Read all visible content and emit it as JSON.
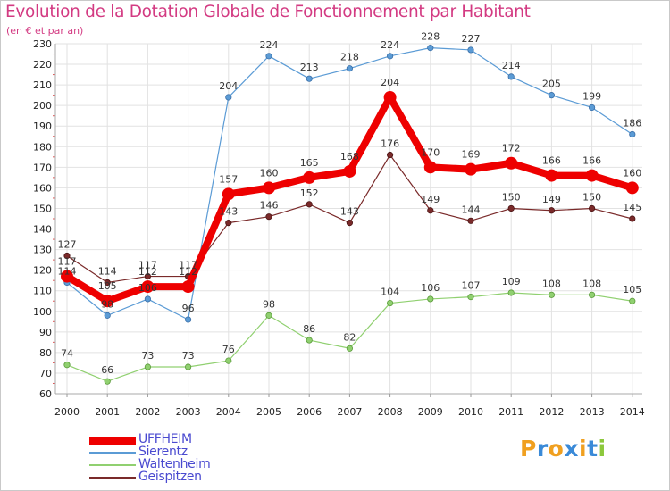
{
  "chart_data": {
    "type": "line",
    "title": "Evolution de la Dotation Globale de Fonctionnement par Habitant",
    "subtitle": "(en € et par an)",
    "x": [
      "2000",
      "2001",
      "2002",
      "2003",
      "2004",
      "2005",
      "2006",
      "2007",
      "2008",
      "2009",
      "2010",
      "2011",
      "2012",
      "2013",
      "2014"
    ],
    "ylim": [
      60,
      230
    ],
    "yticks": [
      60,
      70,
      80,
      90,
      100,
      110,
      120,
      130,
      140,
      150,
      160,
      170,
      180,
      190,
      200,
      210,
      220,
      230
    ],
    "grid": true,
    "legend_placement": "bottom-left",
    "series": [
      {
        "name": "UFFHEIM",
        "color": "#ee0000",
        "values": [
          117,
          105,
          112,
          112,
          157,
          160,
          165,
          168,
          204,
          170,
          169,
          172,
          166,
          166,
          160
        ]
      },
      {
        "name": "Sierentz",
        "color": "#5b9bd5",
        "values": [
          114,
          98,
          106,
          96,
          204,
          224,
          213,
          218,
          224,
          228,
          227,
          214,
          205,
          199,
          186
        ]
      },
      {
        "name": "Waltenheim",
        "color": "#90d070",
        "values": [
          74,
          66,
          73,
          73,
          76,
          98,
          86,
          82,
          104,
          106,
          107,
          109,
          108,
          108,
          105
        ]
      },
      {
        "name": "Geispitzen",
        "color": "#7a2a2a",
        "values": [
          127,
          114,
          117,
          117,
          143,
          146,
          152,
          143,
          176,
          149,
          144,
          150,
          149,
          150,
          145
        ]
      }
    ]
  },
  "logo": {
    "letters": [
      "P",
      "r",
      "o",
      "x",
      "i",
      "t",
      "i"
    ],
    "colors": [
      "#f0a020",
      "#3a8ad8",
      "#f0a020",
      "#3a8ad8",
      "#f0a020",
      "#3a8ad8",
      "#8cc83c"
    ]
  }
}
